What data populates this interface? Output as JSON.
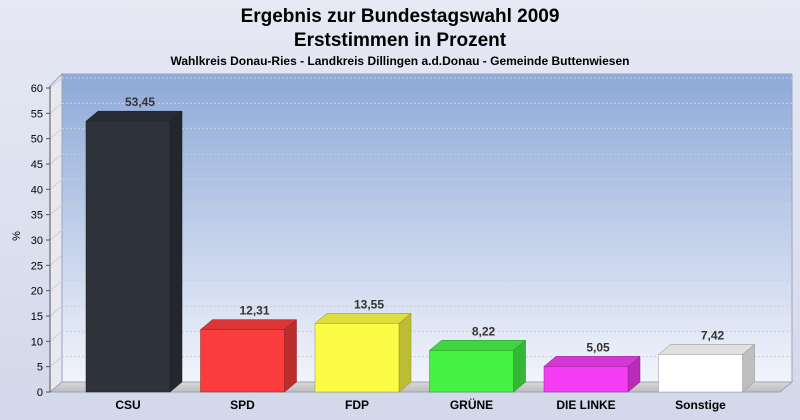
{
  "chart_data": {
    "type": "bar",
    "title": "Ergebnis zur Bundestagswahl 2009",
    "subtitle": "Erststimmen in Prozent",
    "caption": "Wahlkreis Donau-Ries - Landkreis Dillingen a.d.Donau - Gemeinde Buttenwiesen",
    "xlabel": "",
    "ylabel": "%",
    "ylim": [
      0,
      60
    ],
    "yticks": [
      0,
      5,
      10,
      15,
      20,
      25,
      30,
      35,
      40,
      45,
      50,
      55,
      60
    ],
    "grid": true,
    "categories": [
      "CSU",
      "SPD",
      "FDP",
      "GRÜNE",
      "DIE LINKE",
      "Sonstige"
    ],
    "values": [
      53.45,
      12.31,
      13.55,
      8.22,
      5.05,
      7.42
    ],
    "value_labels": [
      "53,45",
      "12,31",
      "13,55",
      "8,22",
      "5,05",
      "7,42"
    ],
    "colors": [
      "#2e323b",
      "#fb3c3c",
      "#fcfc46",
      "#46f246",
      "#f43cf4",
      "#ffffff"
    ]
  }
}
